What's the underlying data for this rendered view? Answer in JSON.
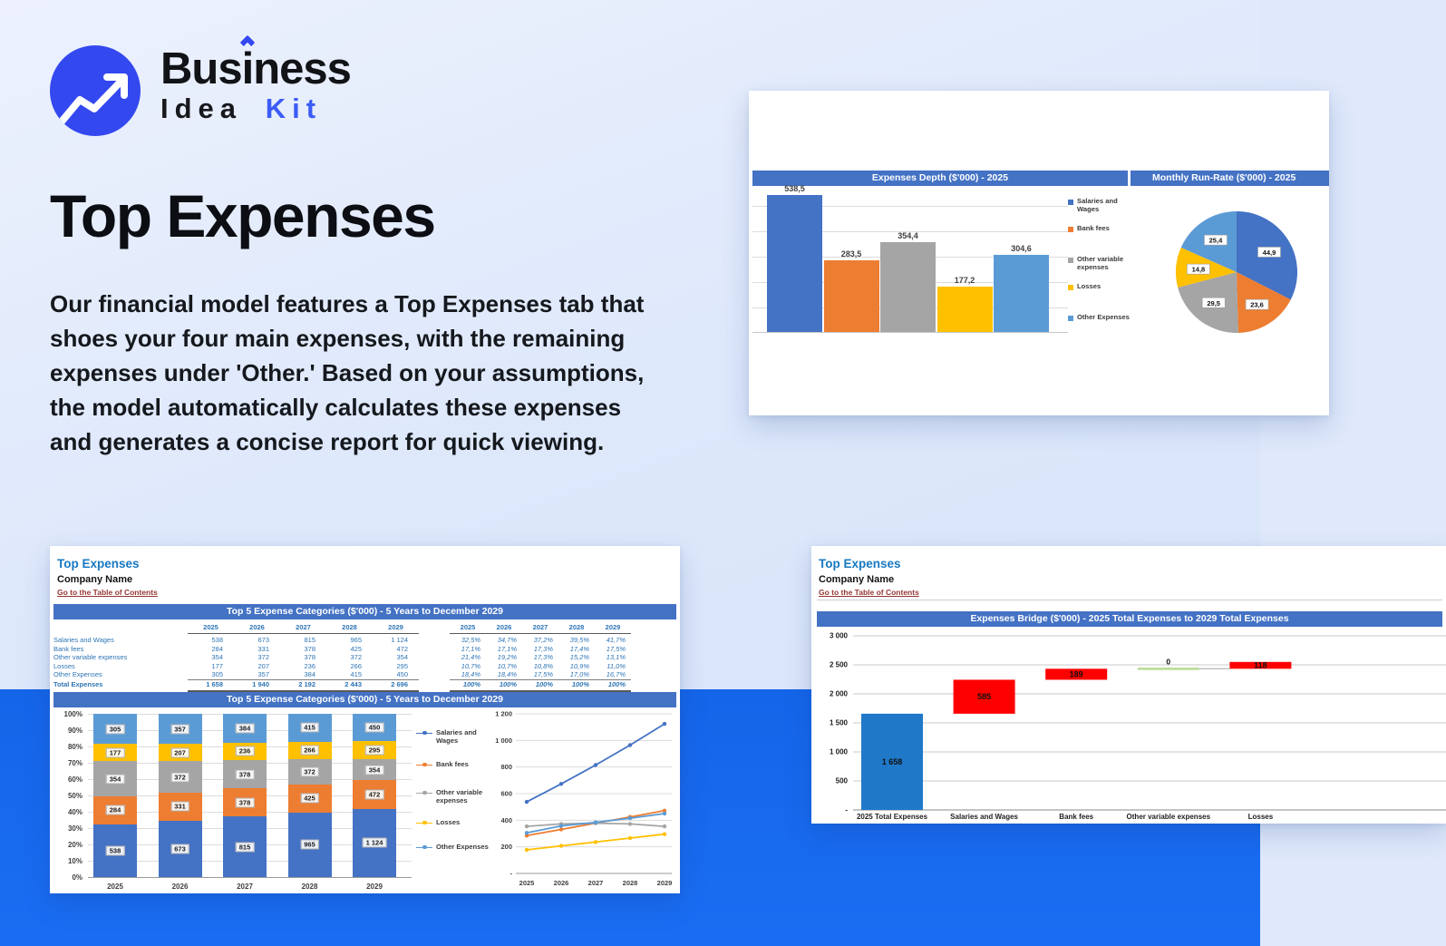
{
  "brand": {
    "b1": "Bus",
    "b2": "i",
    "b3": "ness",
    "idea": "Idea",
    "kit": "Kit"
  },
  "hero": {
    "title": "Top Expenses",
    "paragraph": "Our financial model features a Top Expenses tab that shoes your four main expenses, with the remaining expenses under 'Other.' Based on your assumptions, the model automatically calculates these expenses and generates a concise report for quick viewing."
  },
  "sheet": {
    "title": "Top Expenses",
    "company": "Company Name",
    "link": "Go to the Table of Contents"
  },
  "banners": {
    "expenses_depth": "Expenses Depth ($'000) - 2025",
    "monthly_run_rate": "Monthly Run-Rate ($'000) - 2025",
    "top5_table": "Top 5 Expense Categories ($'000) - 5 Years to December 2029",
    "top5_chart": "Top 5 Expense Categories ($'000) - 5 Years to December 2029",
    "bridge": "Expenses Bridge ($'000) - 2025 Total Expenses to 2029 Total Expenses"
  },
  "legend_labels": [
    "Salaries and Wages",
    "Bank fees",
    "Other variable expenses",
    "Losses",
    "Other Expenses"
  ],
  "series_colors": [
    "#4472C4",
    "#ED7D31",
    "#A5A5A5",
    "#FFC000",
    "#5B9BD5"
  ],
  "accent_colors": {
    "banner_blue": "#4472C4",
    "bridge_total_blue": "#1F79C8",
    "bridge_increase_red": "#FF0000",
    "bridge_zero_green": "#BFDC9E",
    "logo_blue": "#3448ef",
    "kit_blue": "#3b5cf6",
    "band_blue": "#1565e9",
    "link_maroon": "#943634",
    "sheet_title_blue": "#1778C2",
    "table_text_blue": "#2E75B6"
  },
  "expense_table": {
    "years": [
      "2025",
      "2026",
      "2027",
      "2028",
      "2029"
    ],
    "rows": [
      {
        "label": "Salaries and Wages",
        "values": [
          "538",
          "673",
          "815",
          "965",
          "1 124"
        ],
        "pcts": [
          "32,5%",
          "34,7%",
          "37,2%",
          "39,5%",
          "41,7%"
        ]
      },
      {
        "label": "Bank fees",
        "values": [
          "284",
          "331",
          "378",
          "425",
          "472"
        ],
        "pcts": [
          "17,1%",
          "17,1%",
          "17,3%",
          "17,4%",
          "17,5%"
        ]
      },
      {
        "label": "Other variable expenses",
        "values": [
          "354",
          "372",
          "378",
          "372",
          "354"
        ],
        "pcts": [
          "21,4%",
          "19,2%",
          "17,3%",
          "15,2%",
          "13,1%"
        ]
      },
      {
        "label": "Losses",
        "values": [
          "177",
          "207",
          "236",
          "266",
          "295"
        ],
        "pcts": [
          "10,7%",
          "10,7%",
          "10,8%",
          "10,9%",
          "11,0%"
        ]
      },
      {
        "label": "Other Expenses",
        "values": [
          "305",
          "357",
          "384",
          "415",
          "450"
        ],
        "pcts": [
          "18,4%",
          "18,4%",
          "17,5%",
          "17,0%",
          "16,7%"
        ]
      }
    ],
    "total": {
      "label": "Total Expenses",
      "values": [
        "1 658",
        "1 940",
        "2 192",
        "2 443",
        "2 696"
      ],
      "pcts": [
        "100%",
        "100%",
        "100%",
        "100%",
        "100%"
      ]
    }
  },
  "chart_data": [
    {
      "id": "expenses_depth",
      "type": "bar",
      "title": "Expenses Depth ($'000) - 2025",
      "categories": [
        "Salaries and Wages",
        "Bank fees",
        "Other variable expenses",
        "Losses",
        "Other Expenses"
      ],
      "values": [
        538.5,
        283.5,
        354.4,
        177.2,
        304.6
      ],
      "data_labels": [
        "538,5",
        "283,5",
        "354,4",
        "177,2",
        "304,6"
      ],
      "ylim": [
        0,
        600
      ],
      "grid_step": 100,
      "grid": true,
      "legend_position": "right",
      "y_axis_labels": false
    },
    {
      "id": "monthly_run_rate",
      "type": "pie",
      "title": "Monthly Run-Rate ($'000) - 2025",
      "categories": [
        "Salaries and Wages",
        "Bank fees",
        "Other variable expenses",
        "Losses",
        "Other Expenses"
      ],
      "values": [
        44.9,
        23.6,
        29.5,
        14.8,
        25.4
      ],
      "data_labels": [
        "44,9",
        "23,6",
        "29,5",
        "14,8",
        "25,4"
      ],
      "start_angle_deg": 0,
      "direction": "clockwise"
    },
    {
      "id": "top5_stacked",
      "type": "bar",
      "subtype": "percent_stacked",
      "title": "Top 5 Expense Categories ($'000) - 5 Years to December 2029",
      "categories": [
        "2025",
        "2026",
        "2027",
        "2028",
        "2029"
      ],
      "series": [
        {
          "name": "Salaries and Wages",
          "values": [
            538,
            673,
            815,
            965,
            1124
          ],
          "labels": [
            "538",
            "673",
            "815",
            "965",
            "1 124"
          ]
        },
        {
          "name": "Bank fees",
          "values": [
            284,
            331,
            378,
            425,
            472
          ],
          "labels": [
            "284",
            "331",
            "378",
            "425",
            "472"
          ]
        },
        {
          "name": "Other variable expenses",
          "values": [
            354,
            372,
            378,
            372,
            354
          ],
          "labels": [
            "354",
            "372",
            "378",
            "372",
            "354"
          ]
        },
        {
          "name": "Losses",
          "values": [
            177,
            207,
            236,
            266,
            295
          ],
          "labels": [
            "177",
            "207",
            "236",
            "266",
            "295"
          ]
        },
        {
          "name": "Other Expenses",
          "values": [
            305,
            357,
            384,
            415,
            450
          ],
          "labels": [
            "305",
            "357",
            "384",
            "415",
            "450"
          ]
        }
      ],
      "totals": [
        1658,
        1940,
        2192,
        2443,
        2696
      ],
      "y_ticks": [
        "0%",
        "10%",
        "20%",
        "30%",
        "40%",
        "50%",
        "60%",
        "70%",
        "80%",
        "90%",
        "100%"
      ],
      "grid": true,
      "legend_position": "right"
    },
    {
      "id": "top5_lines",
      "type": "line",
      "x": [
        "2025",
        "2026",
        "2027",
        "2028",
        "2029"
      ],
      "series": [
        {
          "name": "Salaries and Wages",
          "values": [
            538,
            673,
            815,
            965,
            1124
          ]
        },
        {
          "name": "Bank fees",
          "values": [
            284,
            331,
            378,
            425,
            472
          ]
        },
        {
          "name": "Other variable expenses",
          "values": [
            354,
            372,
            378,
            372,
            354
          ]
        },
        {
          "name": "Losses",
          "values": [
            177,
            207,
            236,
            266,
            295
          ]
        },
        {
          "name": "Other Expenses",
          "values": [
            305,
            357,
            384,
            415,
            450
          ]
        }
      ],
      "ylim": [
        0,
        1200
      ],
      "y_ticks": [
        "-",
        "200",
        "400",
        "600",
        "800",
        "1 000",
        "1 200"
      ],
      "grid": true
    },
    {
      "id": "expenses_bridge",
      "type": "bar",
      "subtype": "waterfall",
      "title": "Expenses Bridge ($'000) - 2025 Total Expenses to 2029 Total Expenses",
      "categories": [
        "2025 Total Expenses",
        "Salaries and Wages",
        "Bank fees",
        "Other variable expenses",
        "Losses"
      ],
      "steps": [
        {
          "start": 0,
          "end": 1658,
          "label": "1 658",
          "role": "total"
        },
        {
          "start": 1658,
          "end": 2243,
          "label": "585",
          "role": "increase"
        },
        {
          "start": 2243,
          "end": 2432,
          "label": "189",
          "role": "increase"
        },
        {
          "start": 2432,
          "end": 2432,
          "label": "0",
          "role": "zero"
        },
        {
          "start": 2432,
          "end": 2550,
          "label": "118",
          "role": "increase"
        }
      ],
      "ylim": [
        0,
        3000
      ],
      "y_ticks": [
        "-",
        "500",
        "1 000",
        "1 500",
        "2 000",
        "2 500",
        "3 000"
      ],
      "grid": true
    }
  ]
}
